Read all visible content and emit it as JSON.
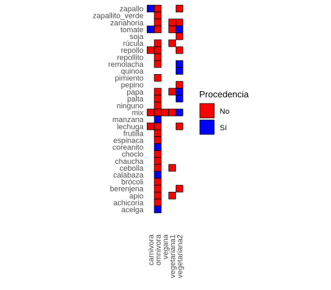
{
  "chart_data": {
    "type": "heatmap",
    "title": "",
    "xlabel": "",
    "ylabel": "",
    "x": [
      "carnivora",
      "omnivora",
      "vegana",
      "vegetariana1",
      "vegetariana2"
    ],
    "y": [
      "zapallo",
      "zapallito_verde",
      "zanahoria",
      "tomate",
      "soja",
      "rúcula",
      "repollo",
      "repollito",
      "remolacha",
      "quinoa",
      "pimiento",
      "pepino",
      "papa",
      "palta",
      "ninguno",
      "mix",
      "manzana",
      "lechuga",
      "frutilla",
      "espinaca",
      "coreanito",
      "choclo",
      "chaucha",
      "cebolla",
      "calabaza",
      "brócoli",
      "berenjena",
      "apio",
      "achicoria",
      "acelga"
    ],
    "legend": {
      "title": "Procedencia",
      "position": "right",
      "entries": [
        {
          "label": "No",
          "color": "#ff0000"
        },
        {
          "label": "Sí",
          "color": "#0000ff"
        }
      ]
    },
    "cells": [
      {
        "x": "carnivora",
        "y": "zapallo",
        "value": "Sí"
      },
      {
        "x": "omnivora",
        "y": "zapallo",
        "value": "No"
      },
      {
        "x": "vegetariana2",
        "y": "zapallo",
        "value": "No"
      },
      {
        "x": "omnivora",
        "y": "zapallito_verde",
        "value": "No"
      },
      {
        "x": "omnivora",
        "y": "zanahoria",
        "value": "No"
      },
      {
        "x": "vegetariana1",
        "y": "zanahoria",
        "value": "No"
      },
      {
        "x": "vegetariana2",
        "y": "zanahoria",
        "value": "No"
      },
      {
        "x": "carnivora",
        "y": "tomate",
        "value": "Sí"
      },
      {
        "x": "omnivora",
        "y": "tomate",
        "value": "No"
      },
      {
        "x": "vegetariana1",
        "y": "tomate",
        "value": "No"
      },
      {
        "x": "vegetariana2",
        "y": "tomate",
        "value": "Sí"
      },
      {
        "x": "vegetariana2",
        "y": "soja",
        "value": "No"
      },
      {
        "x": "omnivora",
        "y": "rúcula",
        "value": "No"
      },
      {
        "x": "vegetariana1",
        "y": "rúcula",
        "value": "No"
      },
      {
        "x": "carnivora",
        "y": "repollo",
        "value": "No"
      },
      {
        "x": "omnivora",
        "y": "repollo",
        "value": "No"
      },
      {
        "x": "vegetariana2",
        "y": "repollo",
        "value": "No"
      },
      {
        "x": "omnivora",
        "y": "repollito",
        "value": "No"
      },
      {
        "x": "omnivora",
        "y": "remolacha",
        "value": "No"
      },
      {
        "x": "vegetariana2",
        "y": "remolacha",
        "value": "Sí"
      },
      {
        "x": "vegetariana2",
        "y": "quinoa",
        "value": "Sí"
      },
      {
        "x": "omnivora",
        "y": "pimiento",
        "value": "No"
      },
      {
        "x": "vegetariana2",
        "y": "pepino",
        "value": "No"
      },
      {
        "x": "omnivora",
        "y": "papa",
        "value": "No"
      },
      {
        "x": "vegetariana1",
        "y": "papa",
        "value": "No"
      },
      {
        "x": "vegetariana2",
        "y": "papa",
        "value": "Sí"
      },
      {
        "x": "omnivora",
        "y": "palta",
        "value": "No"
      },
      {
        "x": "vegetariana2",
        "y": "palta",
        "value": "Sí"
      },
      {
        "x": "omnivora",
        "y": "ninguno",
        "value": "No"
      },
      {
        "x": "carnivora",
        "y": "mix",
        "value": "No"
      },
      {
        "x": "omnivora",
        "y": "mix",
        "value": "No"
      },
      {
        "x": "vegana",
        "y": "mix",
        "value": "No"
      },
      {
        "x": "vegetariana1",
        "y": "mix",
        "value": "No"
      },
      {
        "x": "vegetariana2",
        "y": "mix",
        "value": "Sí"
      },
      {
        "x": "omnivora",
        "y": "manzana",
        "value": "Sí"
      },
      {
        "x": "carnivora",
        "y": "lechuga",
        "value": "No"
      },
      {
        "x": "omnivora",
        "y": "lechuga",
        "value": "No"
      },
      {
        "x": "vegetariana2",
        "y": "lechuga",
        "value": "No"
      },
      {
        "x": "omnivora",
        "y": "frutilla",
        "value": "No"
      },
      {
        "x": "omnivora",
        "y": "espinaca",
        "value": "No"
      },
      {
        "x": "omnivora",
        "y": "coreanito",
        "value": "Sí"
      },
      {
        "x": "omnivora",
        "y": "choclo",
        "value": "No"
      },
      {
        "x": "omnivora",
        "y": "chaucha",
        "value": "No"
      },
      {
        "x": "omnivora",
        "y": "cebolla",
        "value": "No"
      },
      {
        "x": "vegetariana1",
        "y": "cebolla",
        "value": "No"
      },
      {
        "x": "omnivora",
        "y": "calabaza",
        "value": "Sí"
      },
      {
        "x": "omnivora",
        "y": "brócoli",
        "value": "No"
      },
      {
        "x": "omnivora",
        "y": "berenjena",
        "value": "No"
      },
      {
        "x": "vegetariana2",
        "y": "berenjena",
        "value": "No"
      },
      {
        "x": "omnivora",
        "y": "apio",
        "value": "No"
      },
      {
        "x": "vegetariana1",
        "y": "apio",
        "value": "No"
      },
      {
        "x": "omnivora",
        "y": "achicoria",
        "value": "No"
      },
      {
        "x": "omnivora",
        "y": "acelga",
        "value": "Sí"
      }
    ]
  }
}
